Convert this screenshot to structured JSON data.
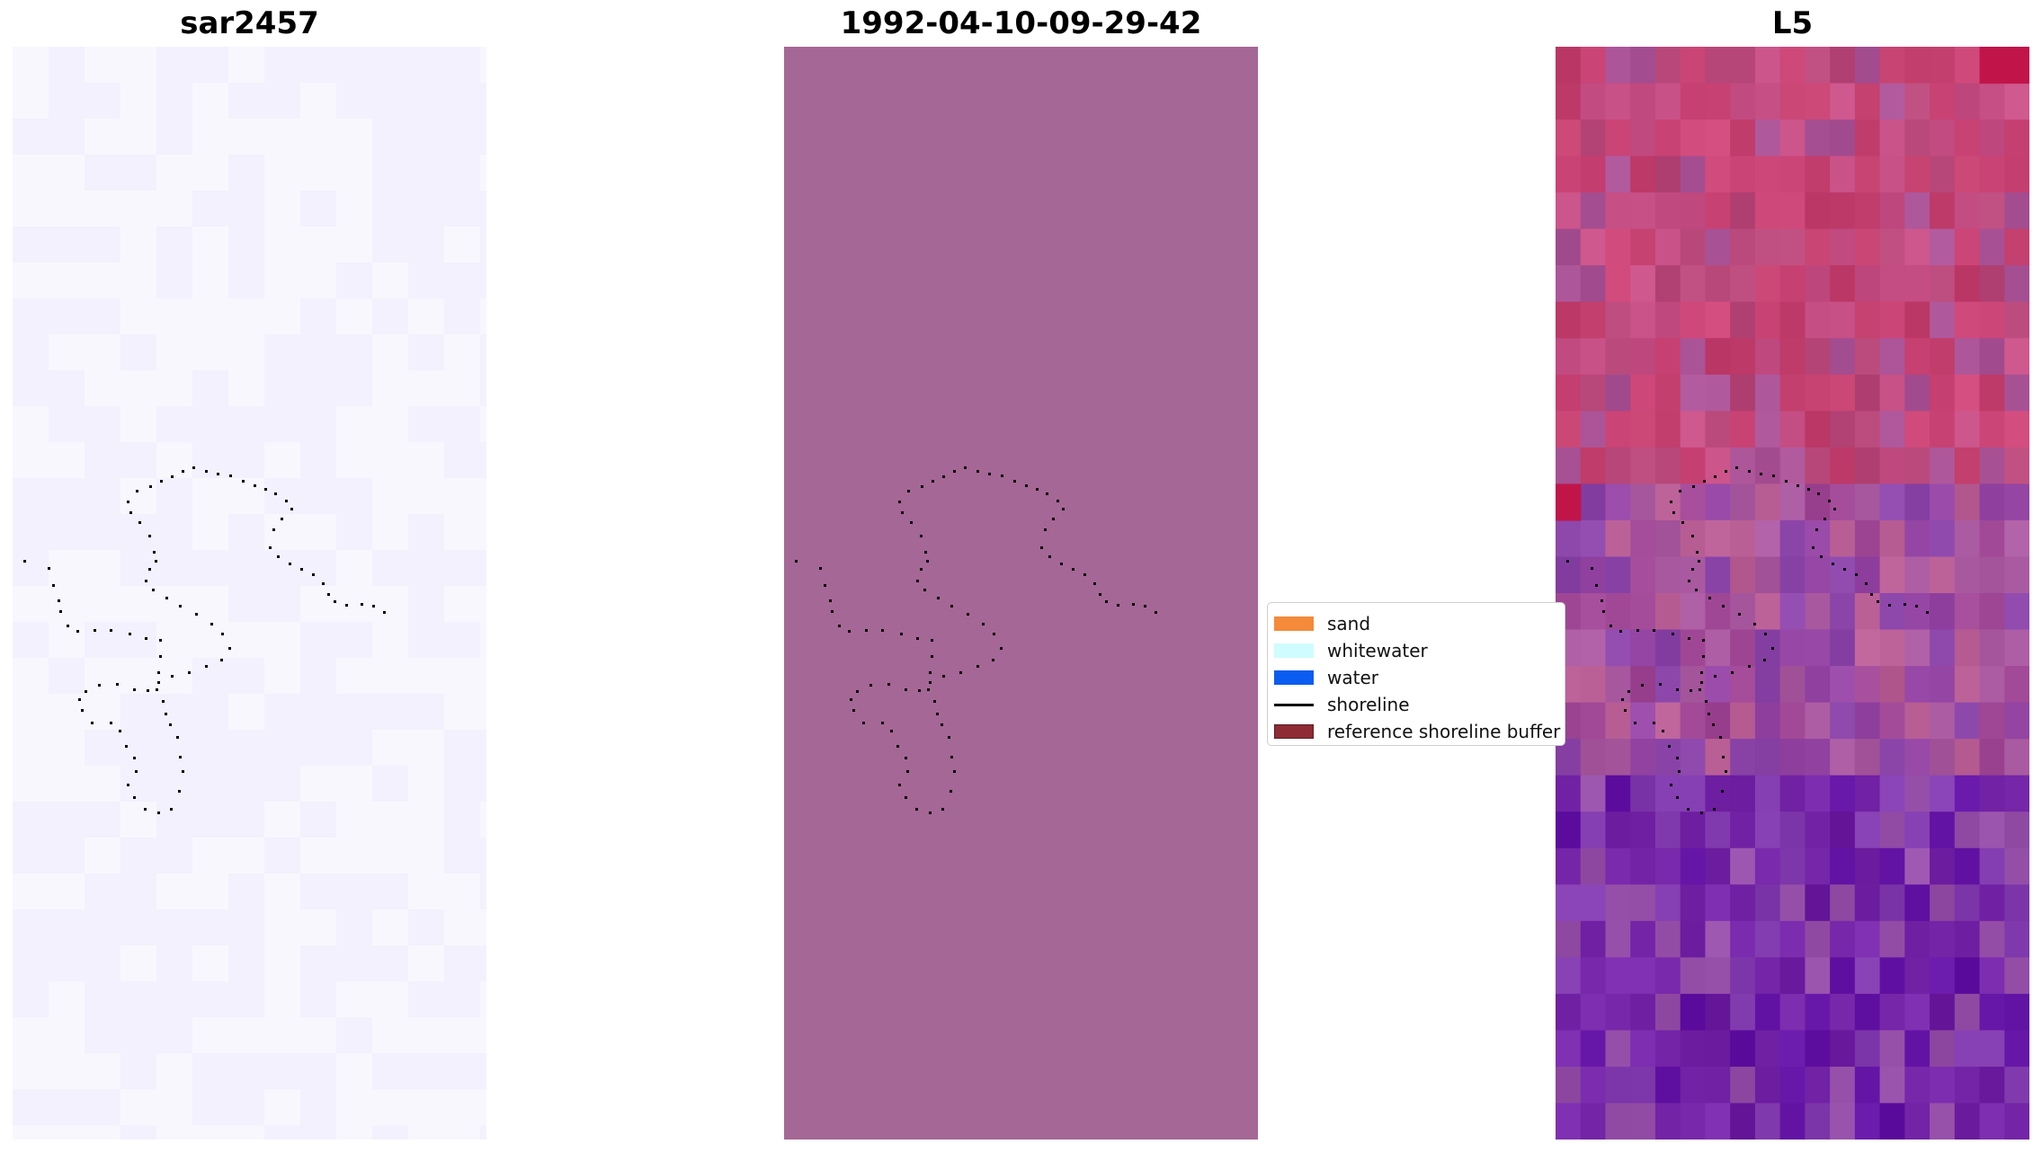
{
  "panels": [
    {
      "title": "sar2457",
      "background": "#f6f4fd"
    },
    {
      "title": "1992-04-10-09-29-42",
      "background": "#a56796"
    },
    {
      "title": "L5",
      "background": "#a0479c"
    }
  ],
  "legend": {
    "items": [
      {
        "label": "sand",
        "color": "#f58a3a",
        "kind": "patch"
      },
      {
        "label": "whitewater",
        "color": "#cffcff",
        "kind": "patch"
      },
      {
        "label": "water",
        "color": "#0b5cf0",
        "kind": "patch"
      },
      {
        "label": "shoreline",
        "color": "#000000",
        "kind": "line"
      },
      {
        "label": "reference shoreline buffer",
        "color": "#8e2b35",
        "kind": "patch"
      }
    ]
  }
}
